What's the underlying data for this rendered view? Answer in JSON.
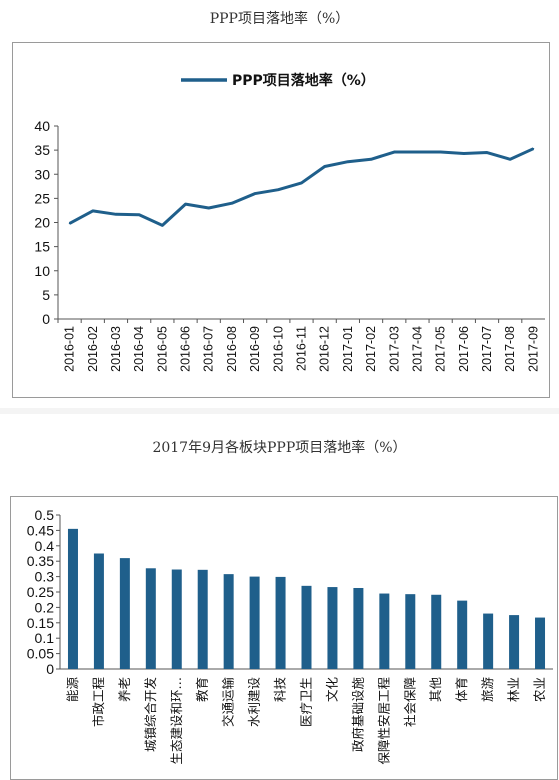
{
  "captions": {
    "top": "PPP项目落地率（%）",
    "bottom": "2017年9月各板块PPP项目落地率（%）"
  },
  "colors": {
    "series": "#1f5f8b",
    "axis": "#555555",
    "frame": "#9a9a9a"
  },
  "chart_data": [
    {
      "type": "line",
      "title": "",
      "legend": "top-center",
      "categories": [
        "2016-01",
        "2016-02",
        "2016-03",
        "2016-04",
        "2016-05",
        "2016-06",
        "2016-07",
        "2016-08",
        "2016-09",
        "2016-10",
        "2016-11",
        "2016-12",
        "2017-01",
        "2017-02",
        "2017-03",
        "2017-04",
        "2017-05",
        "2017-06",
        "2017-07",
        "2017-08",
        "2017-09"
      ],
      "series": [
        {
          "name": "PPP项目落地率（%）",
          "values": [
            19.8,
            22.4,
            21.7,
            21.6,
            19.4,
            23.8,
            23.0,
            24.0,
            26.0,
            26.8,
            28.2,
            31.6,
            32.6,
            33.1,
            34.6,
            34.6,
            34.6,
            34.3,
            34.5,
            33.1,
            35.3
          ]
        }
      ],
      "yticks": [
        "0",
        "5",
        "10",
        "15",
        "20",
        "25",
        "30",
        "35",
        "40"
      ],
      "ylim": [
        0,
        40
      ],
      "grid": false
    },
    {
      "type": "bar",
      "title": "",
      "categories": [
        "能源",
        "市政工程",
        "养老",
        "城镇综合开发",
        "生态建设和环…",
        "教育",
        "交通运输",
        "水利建设",
        "科技",
        "医疗卫生",
        "文化",
        "政府基础设施",
        "保障性安居工程",
        "社会保障",
        "其他",
        "体育",
        "旅游",
        "林业",
        "农业"
      ],
      "values": [
        0.455,
        0.375,
        0.36,
        0.327,
        0.323,
        0.322,
        0.308,
        0.3,
        0.299,
        0.27,
        0.266,
        0.263,
        0.245,
        0.243,
        0.241,
        0.222,
        0.18,
        0.175,
        0.167
      ],
      "yticks": [
        "0",
        "0.05",
        "0.1",
        "0.15",
        "0.2",
        "0.25",
        "0.3",
        "0.35",
        "0.4",
        "0.45",
        "0.5"
      ],
      "ylim": [
        0,
        0.5
      ],
      "grid": false
    }
  ]
}
